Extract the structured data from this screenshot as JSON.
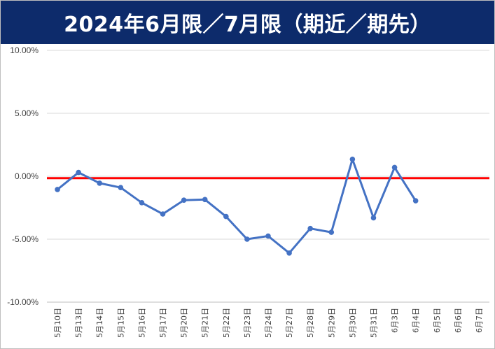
{
  "title": "2024年6月限／7月限（期近／期先）",
  "chart_data": {
    "type": "line",
    "categories": [
      "5月10日",
      "5月13日",
      "5月14日",
      "5月15日",
      "5月16日",
      "5月17日",
      "5月20日",
      "5月21日",
      "5月22日",
      "5月23日",
      "5月24日",
      "5月27日",
      "5月28日",
      "5月29日",
      "5月30日",
      "5月31日",
      "6月3日",
      "6月4日",
      "6月5日",
      "6月6日",
      "6月7日"
    ],
    "series": [
      {
        "values": [
          -1.05,
          0.3,
          -0.55,
          -0.9,
          -2.1,
          -3.0,
          -1.9,
          -1.85,
          -3.2,
          -5.0,
          -4.75,
          -6.1,
          -4.15,
          -4.45,
          1.35,
          -3.3,
          0.7,
          -1.95,
          null,
          null,
          null
        ],
        "color": "#4472c4"
      }
    ],
    "ylim": [
      -10,
      10
    ],
    "ytick_values": [
      10,
      5,
      0,
      -5,
      -10
    ],
    "ytick_labels": [
      "10.00%",
      "5.00%",
      "0.00%",
      "-5.00%",
      "-10.00%"
    ],
    "reference_line": {
      "value": -0.15,
      "color": "#ff0000"
    },
    "grid": true,
    "legend": "none",
    "gridline_color": "#d9d9d9",
    "axis_line_color": "#bfbfbf"
  }
}
